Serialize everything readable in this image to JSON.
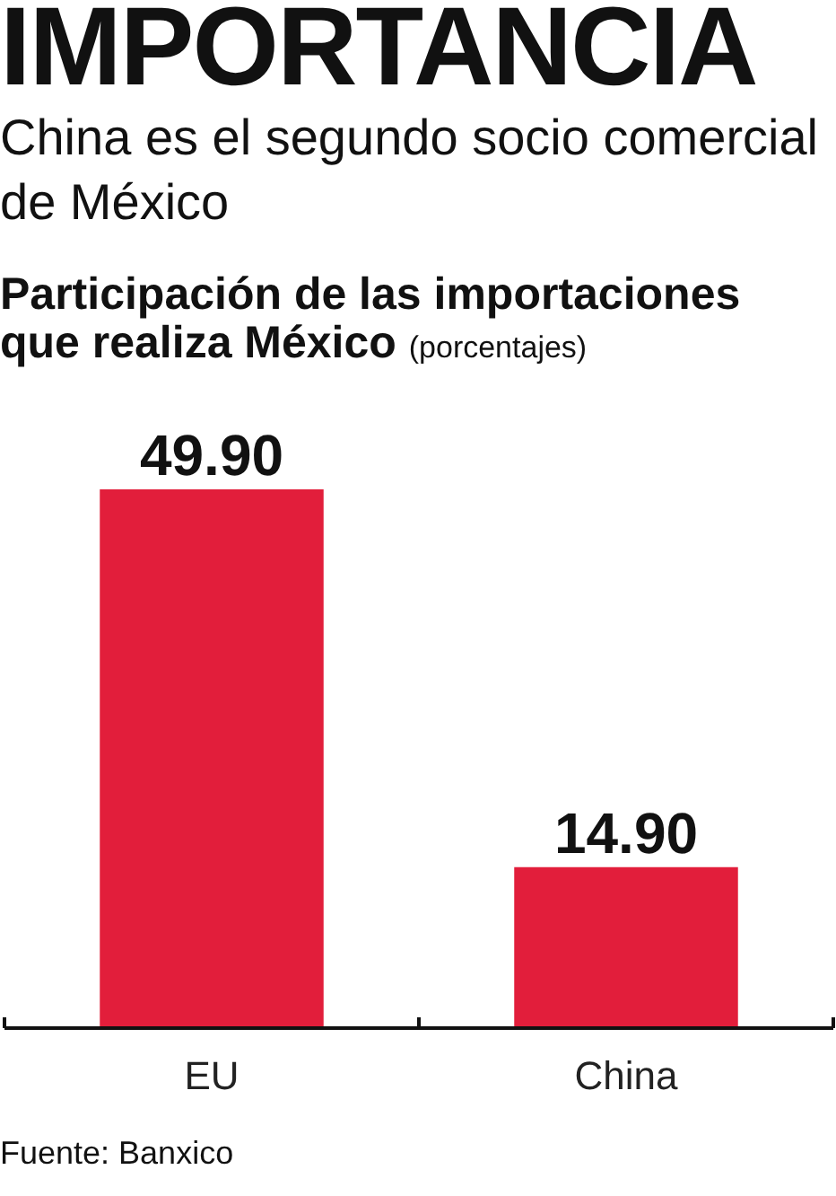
{
  "chart_data": {
    "type": "bar",
    "title": "IMPORTANCIA",
    "subtitle": "China es el segundo socio comercial de México",
    "ylabel": "Participación de las importaciones que realiza México (porcentajes)",
    "categories": [
      "EU",
      "China"
    ],
    "values": [
      49.9,
      14.9
    ],
    "value_labels": [
      "49.90",
      "14.90"
    ],
    "color": "#e21e3b",
    "annotations": [
      "Fuente: Banxico"
    ]
  }
}
